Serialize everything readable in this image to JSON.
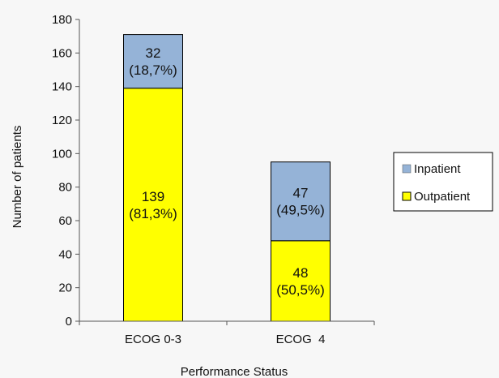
{
  "chart_data": {
    "type": "bar",
    "stacked": true,
    "xlabel": "Performance Status",
    "ylabel": "Number of patients",
    "ylim": [
      0,
      180
    ],
    "yticks": [
      0,
      20,
      40,
      60,
      80,
      100,
      120,
      140,
      160,
      180
    ],
    "categories": [
      "ECOG 0-3",
      "ECOG  4"
    ],
    "series": [
      {
        "name": "Outpatient",
        "color": "#ffff00",
        "values": [
          139,
          48
        ],
        "labels": [
          [
            "139",
            "(81,3%)"
          ],
          [
            "48",
            "(50,5%)"
          ]
        ]
      },
      {
        "name": "Inpatient",
        "color": "#95b3d7",
        "values": [
          32,
          47
        ],
        "labels": [
          [
            "32",
            "(18,7%)"
          ],
          [
            "47",
            "(49,5%)"
          ]
        ]
      }
    ],
    "legend": {
      "position": "right",
      "entries": [
        {
          "name": "Inpatient",
          "color": "#95b3d7"
        },
        {
          "name": "Outpatient",
          "color": "#ffff00"
        }
      ]
    },
    "grid": false
  }
}
